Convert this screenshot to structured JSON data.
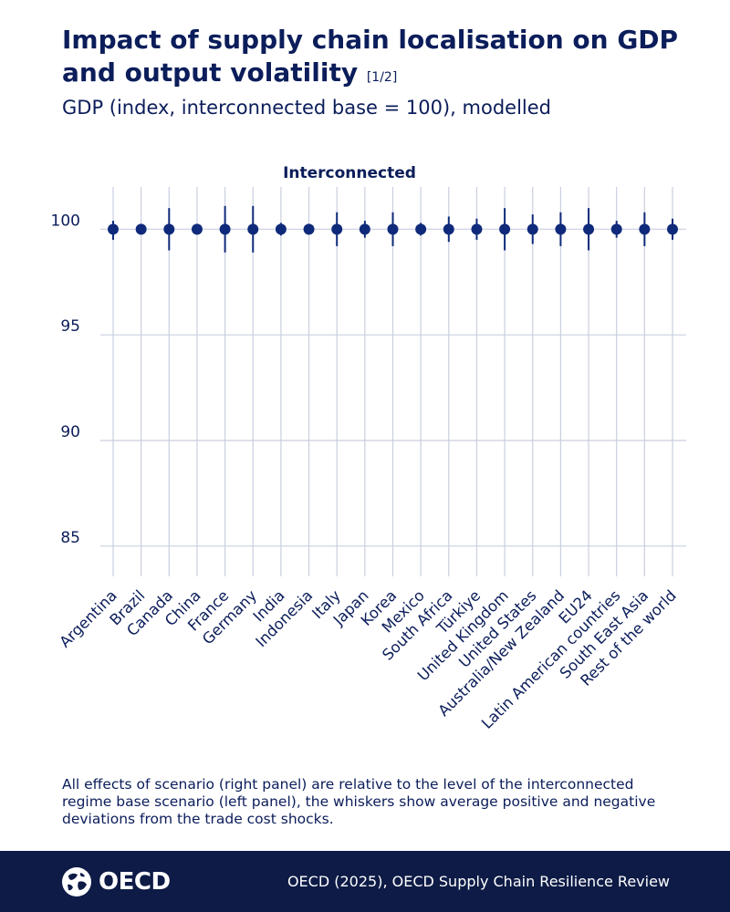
{
  "title": "Impact of supply chain localisation on GDP and output volatility",
  "title_suffix": "[1/2]",
  "subtitle": "GDP (index, interconnected base = 100), modelled",
  "note": "All effects of scenario (right panel) are relative to the level of the interconnected regime base scenario (left panel), the whiskers show average positive and negative deviations from the trade cost shocks.",
  "footer": {
    "logo_text": "OECD",
    "source": "OECD (2025), OECD Supply Chain Resilience Review"
  },
  "colors": {
    "marker": "#0f2a7a",
    "grid": "#c9cfdf",
    "text": "#0b1d5a",
    "footer_bg": "#0d1b46"
  },
  "chart_data": {
    "type": "scatter",
    "panel_label": "Interconnected",
    "ylabel": "GDP (index, interconnected base = 100)",
    "ylim": [
      84,
      102
    ],
    "yticks": [
      85,
      90,
      95,
      100
    ],
    "categories": [
      "Argentina",
      "Brazil",
      "Canada",
      "China",
      "France",
      "Germany",
      "India",
      "Indonesia",
      "Italy",
      "Japan",
      "Korea",
      "Mexico",
      "South Africa",
      "Türkiye",
      "United Kingdom",
      "United States",
      "Australia/New Zealand",
      "EU24",
      "Latin American countries",
      "South East Asia",
      "Rest of the world"
    ],
    "values": [
      100,
      100,
      100,
      100,
      100,
      100,
      100,
      100,
      100,
      100,
      100,
      100,
      100,
      100,
      100,
      100,
      100,
      100,
      100,
      100,
      100
    ],
    "whisker_low": [
      99.5,
      99.8,
      99.0,
      99.8,
      98.9,
      98.9,
      99.7,
      99.9,
      99.2,
      99.6,
      99.2,
      99.7,
      99.4,
      99.5,
      99.0,
      99.3,
      99.2,
      99.0,
      99.6,
      99.2,
      99.5
    ],
    "whisker_high": [
      100.4,
      100.2,
      101.0,
      100.2,
      101.1,
      101.1,
      100.3,
      100.1,
      100.8,
      100.4,
      100.8,
      100.3,
      100.6,
      100.5,
      101.0,
      100.7,
      100.8,
      101.0,
      100.4,
      100.8,
      100.5
    ]
  }
}
